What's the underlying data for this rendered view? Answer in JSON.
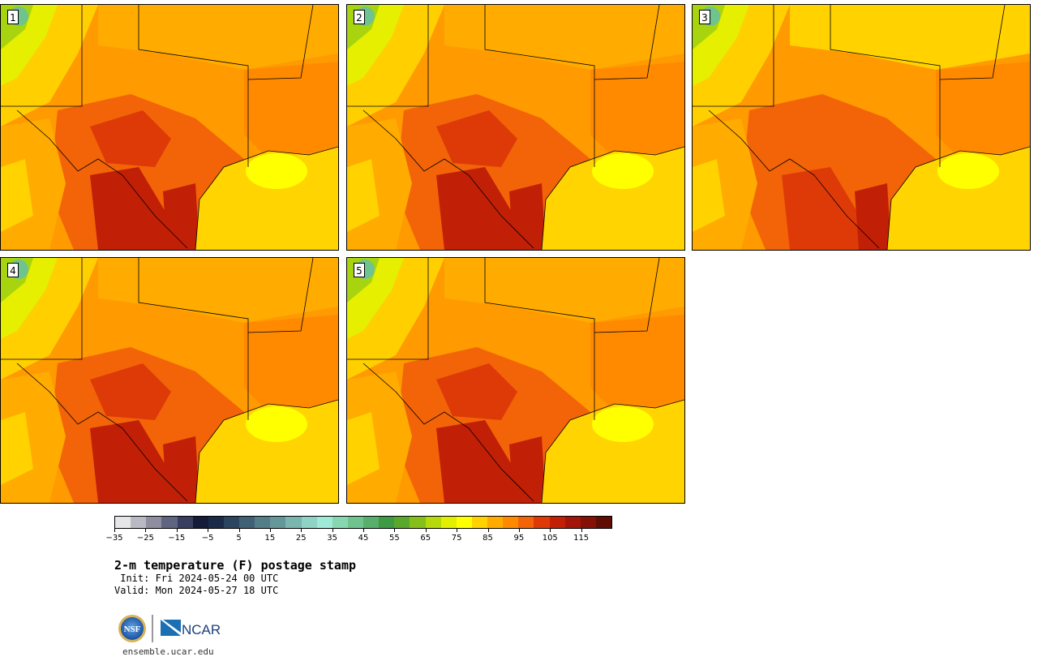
{
  "stamps": [
    {
      "label": "1"
    },
    {
      "label": "2"
    },
    {
      "label": "3"
    },
    {
      "label": "4"
    },
    {
      "label": "5"
    }
  ],
  "colorbar": {
    "colors": [
      "#e6e6e8",
      "#b9b9c3",
      "#8e8ea0",
      "#5f6580",
      "#383e5f",
      "#141c3a",
      "#1b2a48",
      "#2b4460",
      "#3f6075",
      "#537e87",
      "#659799",
      "#7ab5b0",
      "#8fd2c6",
      "#9fe9d8",
      "#86d7b0",
      "#6fc38f",
      "#58af6c",
      "#3f9a45",
      "#59a82b",
      "#86bf19",
      "#b5d90a",
      "#e2ef00",
      "#ffff00",
      "#ffd200",
      "#ffab00",
      "#ff8a00",
      "#f26407",
      "#de3a08",
      "#c11f06",
      "#a31509",
      "#841006",
      "#5f0c03"
    ],
    "tick_labels": [
      "−35",
      "−25",
      "−15",
      "−5",
      "5",
      "15",
      "25",
      "35",
      "45",
      "55",
      "65",
      "75",
      "85",
      "95",
      "105",
      "115"
    ]
  },
  "title": "2-m temperature (F) postage stamp",
  "init": " Init: Fri 2024-05-24 00 UTC",
  "valid": "Valid: Mon 2024-05-27 18 UTC",
  "logos": {
    "nsf_text": "NSF",
    "ncar_text": "NCAR"
  },
  "url": "ensemble.ucar.edu"
}
